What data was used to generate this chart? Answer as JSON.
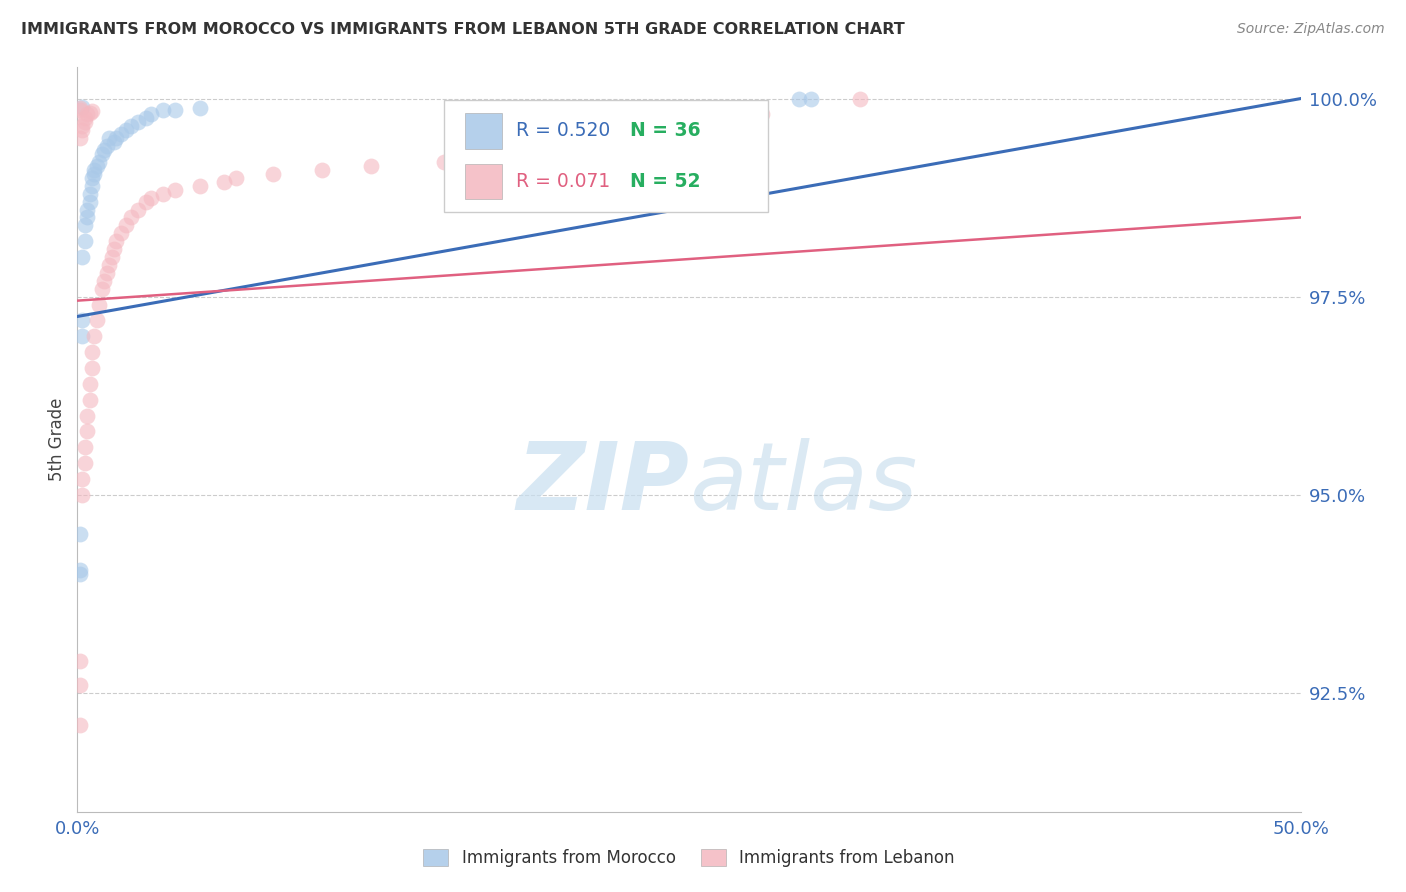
{
  "title": "IMMIGRANTS FROM MOROCCO VS IMMIGRANTS FROM LEBANON 5TH GRADE CORRELATION CHART",
  "source": "Source: ZipAtlas.com",
  "ylabel": "5th Grade",
  "xlim": [
    0.0,
    0.5
  ],
  "ylim": [
    0.91,
    1.004
  ],
  "xtick_labels": [
    "0.0%",
    "50.0%"
  ],
  "xtick_vals": [
    0.0,
    0.5
  ],
  "ytick_labels": [
    "92.5%",
    "95.0%",
    "97.5%",
    "100.0%"
  ],
  "ytick_vals": [
    0.925,
    0.95,
    0.975,
    1.0
  ],
  "morocco_color": "#a8c8e8",
  "lebanon_color": "#f4b8c0",
  "morocco_line_color": "#3b6cb7",
  "lebanon_line_color": "#e06080",
  "morocco_R": 0.52,
  "morocco_N": 36,
  "lebanon_R": 0.071,
  "lebanon_N": 52,
  "watermark_zip": "ZIP",
  "watermark_atlas": "atlas",
  "background_color": "#ffffff",
  "morocco_scatter_x": [
    0.001,
    0.001,
    0.002,
    0.002,
    0.002,
    0.003,
    0.003,
    0.004,
    0.004,
    0.005,
    0.005,
    0.006,
    0.006,
    0.007,
    0.007,
    0.008,
    0.009,
    0.01,
    0.011,
    0.012,
    0.013,
    0.015,
    0.016,
    0.018,
    0.02,
    0.022,
    0.025,
    0.028,
    0.03,
    0.035,
    0.04,
    0.05,
    0.001,
    0.295,
    0.3,
    0.002
  ],
  "morocco_scatter_y": [
    0.9405,
    0.945,
    0.97,
    0.972,
    0.98,
    0.982,
    0.984,
    0.985,
    0.986,
    0.987,
    0.988,
    0.989,
    0.99,
    0.991,
    0.9905,
    0.9915,
    0.992,
    0.993,
    0.9935,
    0.994,
    0.995,
    0.9945,
    0.995,
    0.9955,
    0.996,
    0.9965,
    0.997,
    0.9975,
    0.998,
    0.9985,
    0.9985,
    0.9988,
    0.94,
    1.0,
    1.0,
    0.999
  ],
  "lebanon_scatter_x": [
    0.001,
    0.001,
    0.001,
    0.002,
    0.002,
    0.003,
    0.003,
    0.004,
    0.004,
    0.005,
    0.005,
    0.006,
    0.006,
    0.007,
    0.008,
    0.009,
    0.01,
    0.011,
    0.012,
    0.013,
    0.014,
    0.015,
    0.016,
    0.018,
    0.02,
    0.022,
    0.025,
    0.028,
    0.03,
    0.035,
    0.04,
    0.05,
    0.06,
    0.065,
    0.08,
    0.1,
    0.12,
    0.15,
    0.001,
    0.002,
    0.002,
    0.003,
    0.003,
    0.004,
    0.005,
    0.006,
    0.32,
    0.28,
    0.001,
    0.001,
    0.24,
    0.26
  ],
  "lebanon_scatter_y": [
    0.921,
    0.926,
    0.929,
    0.95,
    0.952,
    0.954,
    0.956,
    0.958,
    0.96,
    0.962,
    0.964,
    0.966,
    0.968,
    0.97,
    0.972,
    0.974,
    0.976,
    0.977,
    0.978,
    0.979,
    0.98,
    0.981,
    0.982,
    0.983,
    0.984,
    0.985,
    0.986,
    0.987,
    0.9875,
    0.988,
    0.9885,
    0.989,
    0.9895,
    0.99,
    0.9905,
    0.991,
    0.9915,
    0.992,
    0.995,
    0.996,
    0.9965,
    0.997,
    0.9975,
    0.998,
    0.9982,
    0.9984,
    1.0,
    0.998,
    0.9986,
    0.9988,
    0.992,
    0.992
  ]
}
